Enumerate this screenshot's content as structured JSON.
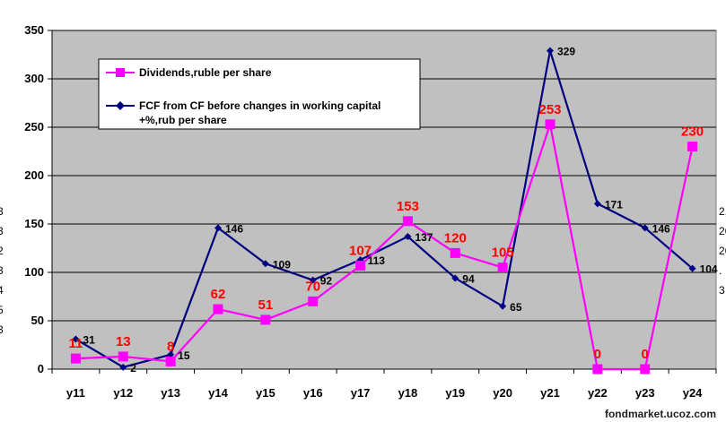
{
  "watermark": "fondmarket.ucoz.com",
  "edge_fragments": {
    "left": [
      "3",
      "3",
      "2",
      "3",
      "4",
      "5",
      "3"
    ],
    "right": [
      "2,",
      "26",
      "26",
      ".",
      "3"
    ]
  },
  "chart_data": {
    "type": "line",
    "categories": [
      "y11",
      "y12",
      "y13",
      "y14",
      "y15",
      "y16",
      "y17",
      "y18",
      "y19",
      "y20",
      "y21",
      "y22",
      "y23",
      "y24"
    ],
    "ylim": [
      0,
      350
    ],
    "yticks": [
      "0",
      "50",
      "100",
      "150",
      "200",
      "250",
      "300",
      "350"
    ],
    "grid": true,
    "legend": "top-left",
    "colors": {
      "plot_bg": "#c0c0c0",
      "dividends": "#ff00ff",
      "fcf": "#000080",
      "div_labels": "#ff0000"
    },
    "series": [
      {
        "name": "Dividends,ruble per share",
        "values": [
          11,
          13,
          8,
          62,
          51,
          70,
          107,
          153,
          120,
          105,
          253,
          0,
          0,
          230
        ],
        "labels": [
          "11",
          "13",
          "8",
          "62",
          "51",
          "70",
          "107",
          "153",
          "120",
          "105",
          "253",
          "0",
          "0",
          "230"
        ]
      },
      {
        "name_lines": [
          "FCF from  CF before changes in working capital",
          "+%,rub per share"
        ],
        "values": [
          31,
          2,
          15,
          146,
          109,
          92,
          113,
          137,
          94,
          65,
          329,
          171,
          146,
          104
        ],
        "labels": [
          "31",
          "2",
          "15",
          "146",
          "109",
          "92",
          "113",
          "137",
          "94",
          "65",
          "329",
          "171",
          "146",
          "104"
        ]
      }
    ]
  }
}
